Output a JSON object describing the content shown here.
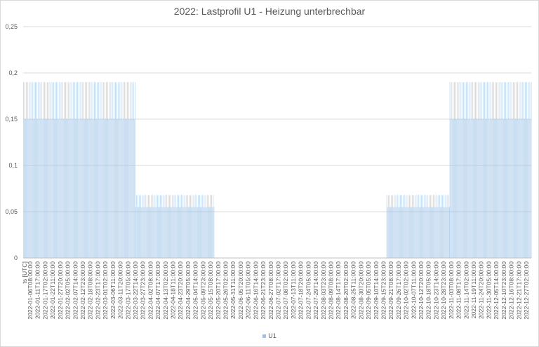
{
  "chart_data": {
    "type": "bar",
    "title": "2022: Lastprofil U1 - Heizung unterbrechbar",
    "xlabel": "ts [UTC]",
    "ylabel": "",
    "ylim": [
      0,
      0.25
    ],
    "yticks": [
      "0",
      "0,05",
      "0,1",
      "0,15",
      "0,2",
      "0,25"
    ],
    "grid": true,
    "legend_position": "bottom",
    "colors": {
      "series": "#9dc3e6",
      "grid": "#d9d9d9",
      "axis": "#bfbfbf"
    },
    "x_tick_labels": [
      "2022-01-06T08:00:00",
      "2022-01-11T17:00:00",
      "2022-01-17T02:00:00",
      "2022-01-22T11:00:00",
      "2022-01-27T20:00:00",
      "2022-02-02T05:00:00",
      "2022-02-07T14:00:00",
      "2022-02-12T23:00:00",
      "2022-02-18T08:00:00",
      "2022-02-23T17:00:00",
      "2022-03-01T02:00:00",
      "2022-03-06T11:00:00",
      "2022-03-11T20:00:00",
      "2022-03-17T05:00:00",
      "2022-03-22T14:00:00",
      "2022-03-27T23:00:00",
      "2022-04-02T08:00:00",
      "2022-04-07T17:00:00",
      "2022-04-13T02:00:00",
      "2022-04-18T11:00:00",
      "2022-04-23T20:00:00",
      "2022-04-29T05:00:00",
      "2022-05-04T14:00:00",
      "2022-05-09T23:00:00",
      "2022-05-15T08:00:00",
      "2022-05-20T17:00:00",
      "2022-05-26T02:00:00",
      "2022-05-31T11:00:00",
      "2022-06-05T20:00:00",
      "2022-06-11T05:00:00",
      "2022-06-16T14:00:00",
      "2022-06-21T23:00:00",
      "2022-06-27T08:00:00",
      "2022-07-02T17:00:00",
      "2022-07-08T02:00:00",
      "2022-07-13T11:00:00",
      "2022-07-18T20:00:00",
      "2022-07-24T05:00:00",
      "2022-07-29T14:00:00",
      "2022-08-03T23:00:00",
      "2022-08-09T08:00:00",
      "2022-08-14T17:00:00",
      "2022-08-20T02:00:00",
      "2022-08-25T11:00:00",
      "2022-08-30T20:00:00",
      "2022-09-05T05:00:00",
      "2022-09-10T14:00:00",
      "2022-09-15T23:00:00",
      "2022-09-21T08:00:00",
      "2022-09-26T17:00:00",
      "2022-10-02T02:00:00",
      "2022-10-07T11:00:00",
      "2022-10-12T20:00:00",
      "2022-10-18T05:00:00",
      "2022-10-23T14:00:00",
      "2022-10-28T23:00:00",
      "2022-11-03T08:00:00",
      "2022-11-08T17:00:00",
      "2022-11-14T02:00:00",
      "2022-11-19T11:00:00",
      "2022-11-24T20:00:00",
      "2022-11-30T05:00:00",
      "2022-12-05T14:00:00",
      "2022-12-10T23:00:00",
      "2022-12-16T08:00:00",
      "2022-12-21T17:00:00",
      "2022-12-27T02:00:00"
    ],
    "series": [
      {
        "name": "U1",
        "segments": [
          {
            "from": "2022-01-01T00:00:00",
            "to": "2022-03-22T14:00:00",
            "on_value": 0.19,
            "off_value": 0.15
          },
          {
            "from": "2022-03-22T14:00:00",
            "to": "2022-05-18T00:00:00",
            "on_value": 0.068,
            "off_value": 0.055
          },
          {
            "from": "2022-05-18T00:00:00",
            "to": "2022-09-19T00:00:00",
            "on_value": 0,
            "off_value": 0
          },
          {
            "from": "2022-09-19T00:00:00",
            "to": "2022-11-03T08:00:00",
            "on_value": 0.068,
            "off_value": 0.055
          },
          {
            "from": "2022-11-03T08:00:00",
            "to": "2022-12-31T23:00:00",
            "on_value": 0.19,
            "off_value": 0.15
          }
        ]
      }
    ]
  }
}
